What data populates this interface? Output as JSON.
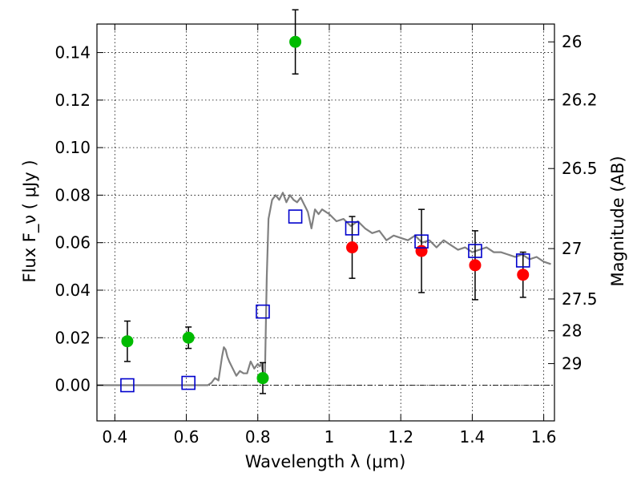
{
  "chart_data": {
    "type": "scatter",
    "xlabel": "Wavelength  λ (μm)",
    "ylabel": "Flux  F_ν  ( μJy )",
    "y2label": "Magnitude (AB)",
    "xlim": [
      0.35,
      1.63
    ],
    "ylim": [
      -0.015,
      0.152
    ],
    "grid": true,
    "x_ticks": [
      0.4,
      0.6,
      0.8,
      1.0,
      1.2,
      1.4,
      1.6
    ],
    "x_tick_labels": [
      "0.4",
      "0.6",
      "0.8",
      "1",
      "1.2",
      "1.4",
      "1.6"
    ],
    "y_ticks": [
      0.0,
      0.02,
      0.04,
      0.06,
      0.08,
      0.1,
      0.12,
      0.14
    ],
    "y_tick_labels": [
      "0.00",
      "0.02",
      "0.04",
      "0.06",
      "0.08",
      "0.10",
      "0.12",
      "0.14"
    ],
    "y2_ticks": [
      {
        "label": "26",
        "flux": 0.1445
      },
      {
        "label": "26.2",
        "flux": 0.1202
      },
      {
        "label": "26.5",
        "flux": 0.0912
      },
      {
        "label": "27",
        "flux": 0.0575
      },
      {
        "label": "27.5",
        "flux": 0.0363
      },
      {
        "label": "28",
        "flux": 0.0229
      },
      {
        "label": "29",
        "flux": 0.0091
      }
    ],
    "series": [
      {
        "color": "#00bb00",
        "marker": "circle",
        "points": [
          {
            "x": 0.435,
            "y": 0.0185,
            "err": 0.0085
          },
          {
            "x": 0.606,
            "y": 0.02,
            "err": 0.0045
          },
          {
            "x": 0.814,
            "y": 0.003,
            "err": 0.0065
          },
          {
            "x": 0.905,
            "y": 0.1445,
            "err": 0.0135
          }
        ]
      },
      {
        "color": "#ff0000",
        "marker": "circle",
        "points": [
          {
            "x": 1.064,
            "y": 0.058,
            "err": 0.013
          },
          {
            "x": 1.258,
            "y": 0.0565,
            "err": 0.0175
          },
          {
            "x": 1.408,
            "y": 0.0505,
            "err": 0.0145
          },
          {
            "x": 1.542,
            "y": 0.0465,
            "err": 0.0095
          }
        ]
      },
      {
        "color": "#0000cc",
        "marker": "open-square",
        "points": [
          {
            "x": 0.435,
            "y": 0.0
          },
          {
            "x": 0.606,
            "y": 0.001
          },
          {
            "x": 0.814,
            "y": 0.031
          },
          {
            "x": 0.905,
            "y": 0.071
          },
          {
            "x": 1.064,
            "y": 0.066
          },
          {
            "x": 1.258,
            "y": 0.0605
          },
          {
            "x": 1.408,
            "y": 0.0565
          },
          {
            "x": 1.542,
            "y": 0.0525
          }
        ]
      }
    ],
    "model_spectrum": {
      "color": "#808080",
      "x": [
        0.35,
        0.66,
        0.67,
        0.68,
        0.69,
        0.7,
        0.705,
        0.71,
        0.715,
        0.72,
        0.73,
        0.74,
        0.75,
        0.76,
        0.77,
        0.78,
        0.79,
        0.8,
        0.805,
        0.81,
        0.815,
        0.82,
        0.825,
        0.83,
        0.84,
        0.85,
        0.86,
        0.87,
        0.88,
        0.89,
        0.9,
        0.91,
        0.92,
        0.93,
        0.94,
        0.95,
        0.96,
        0.97,
        0.98,
        0.99,
        1.0,
        1.02,
        1.04,
        1.06,
        1.08,
        1.1,
        1.12,
        1.14,
        1.16,
        1.18,
        1.2,
        1.22,
        1.24,
        1.26,
        1.28,
        1.3,
        1.32,
        1.34,
        1.36,
        1.38,
        1.4,
        1.42,
        1.44,
        1.46,
        1.48,
        1.5,
        1.52,
        1.54,
        1.56,
        1.58,
        1.6,
        1.62
      ],
      "y": [
        0.0,
        0.0,
        0.001,
        0.003,
        0.002,
        0.012,
        0.016,
        0.015,
        0.012,
        0.01,
        0.007,
        0.004,
        0.006,
        0.005,
        0.005,
        0.01,
        0.007,
        0.009,
        0.008,
        0.009,
        0.005,
        0.005,
        0.045,
        0.07,
        0.078,
        0.08,
        0.078,
        0.081,
        0.077,
        0.08,
        0.078,
        0.077,
        0.079,
        0.076,
        0.073,
        0.066,
        0.074,
        0.072,
        0.074,
        0.073,
        0.072,
        0.069,
        0.07,
        0.067,
        0.069,
        0.066,
        0.064,
        0.065,
        0.061,
        0.063,
        0.062,
        0.061,
        0.063,
        0.06,
        0.061,
        0.058,
        0.061,
        0.059,
        0.057,
        0.058,
        0.056,
        0.057,
        0.058,
        0.056,
        0.056,
        0.055,
        0.054,
        0.055,
        0.053,
        0.054,
        0.052,
        0.051
      ]
    }
  }
}
